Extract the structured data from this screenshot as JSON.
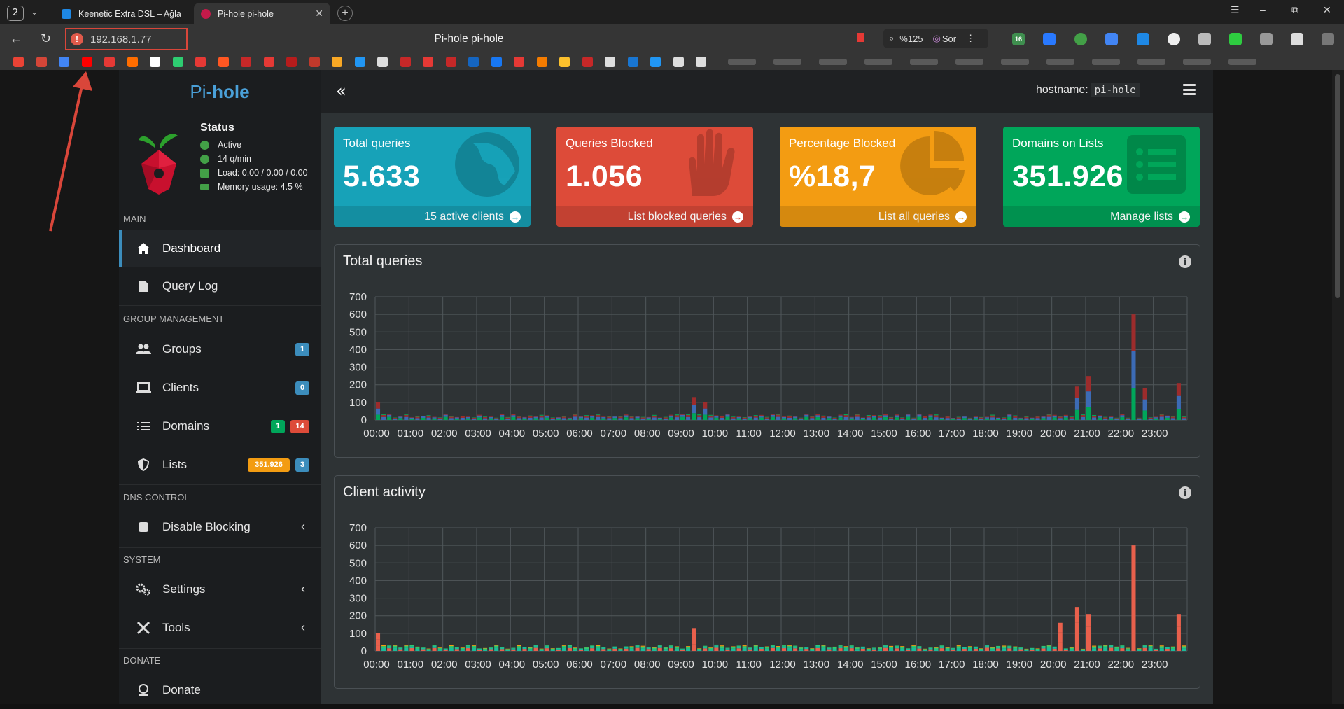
{
  "browser": {
    "tab_count": "2",
    "tabs": [
      {
        "title": "Keenetic Extra DSL – Ağla",
        "active": false
      },
      {
        "title": "Pi-hole pi-hole",
        "active": true
      }
    ],
    "url": "192.168.1.77",
    "page_title": "Pi-hole pi-hole",
    "zoom": "%125",
    "ask_label": "Sor",
    "extension_badge": "16"
  },
  "sidebar": {
    "brand_prefix": "Pi-",
    "brand_suffix": "hole",
    "status": {
      "title": "Status",
      "active": "Active",
      "rate": "14 q/min",
      "load": "Load:  0.00 / 0.00 / 0.00",
      "memory": "Memory usage:  4.5 %"
    },
    "sections": {
      "main": "MAIN",
      "group_management": "GROUP MANAGEMENT",
      "dns_control": "DNS CONTROL",
      "system": "SYSTEM",
      "donate": "DONATE"
    },
    "items": {
      "dashboard": "Dashboard",
      "query_log": "Query Log",
      "groups": "Groups",
      "groups_badge": "1",
      "clients": "Clients",
      "clients_badge": "0",
      "domains": "Domains",
      "domains_badge_allow": "1",
      "domains_badge_deny": "14",
      "lists": "Lists",
      "lists_badge_count": "351.926",
      "lists_badge_lists": "3",
      "disable_blocking": "Disable Blocking",
      "settings": "Settings",
      "tools": "Tools",
      "donate": "Donate"
    }
  },
  "header": {
    "hostname_label": "hostname:",
    "hostname_value": "pi-hole"
  },
  "stats": [
    {
      "title": "Total queries",
      "value": "5.633",
      "footer": "15 active clients",
      "color": "#17a2b8",
      "icon": "globe-icon"
    },
    {
      "title": "Queries Blocked",
      "value": "1.056",
      "footer": "List blocked queries",
      "color": "#dd4b39",
      "icon": "hand-icon"
    },
    {
      "title": "Percentage Blocked",
      "value": "%18,7",
      "footer": "List all queries",
      "color": "#f39c12",
      "icon": "pie-chart-icon"
    },
    {
      "title": "Domains on Lists",
      "value": "351.926",
      "footer": "Manage lists",
      "color": "#00a65a",
      "icon": "list-icon"
    }
  ],
  "panels": {
    "total_queries": "Total queries",
    "client_activity": "Client activity"
  },
  "chart_data": [
    {
      "type": "bar",
      "title": "Total queries",
      "stacked": true,
      "ylim": [
        0,
        700
      ],
      "yticks": [
        0,
        100,
        200,
        300,
        400,
        500,
        600,
        700
      ],
      "xticks": [
        "00:00",
        "01:00",
        "02:00",
        "03:00",
        "04:00",
        "05:00",
        "06:00",
        "07:00",
        "08:00",
        "09:00",
        "10:00",
        "11:00",
        "12:00",
        "13:00",
        "14:00",
        "15:00",
        "16:00",
        "17:00",
        "18:00",
        "19:00",
        "20:00",
        "21:00",
        "22:00",
        "23:00"
      ],
      "grid": true,
      "series_colors": [
        "#00a65a",
        "#3c6bb5",
        "#9c2c2c"
      ],
      "notable_bars": [
        {
          "x": "00:00",
          "total": 100
        },
        {
          "x": "09:15",
          "total": 130
        },
        {
          "x": "09:40",
          "total": 100
        },
        {
          "x": "20:40",
          "total": 190
        },
        {
          "x": "21:00",
          "total": 250
        },
        {
          "x": "22:20",
          "total": 600
        },
        {
          "x": "22:40",
          "total": 180
        },
        {
          "x": "23:40",
          "total": 210
        }
      ],
      "baseline": 30
    },
    {
      "type": "bar",
      "title": "Client activity",
      "stacked": true,
      "ylim": [
        0,
        700
      ],
      "yticks": [
        0,
        100,
        200,
        300,
        400,
        500,
        600,
        700
      ],
      "xticks": [
        "00:00",
        "01:00",
        "02:00",
        "03:00",
        "04:00",
        "05:00",
        "06:00",
        "07:00",
        "08:00",
        "09:00",
        "10:00",
        "11:00",
        "12:00",
        "13:00",
        "14:00",
        "15:00",
        "16:00",
        "17:00",
        "18:00",
        "19:00",
        "20:00",
        "21:00",
        "22:00",
        "23:00"
      ],
      "grid": true,
      "series_colors": [
        "#e8604c",
        "#1abc9c",
        "#2ecc71",
        "#f39c12",
        "#3c6bb5"
      ],
      "notable_bars": [
        {
          "x": "00:00",
          "total": 100
        },
        {
          "x": "09:20",
          "total": 130
        },
        {
          "x": "20:10",
          "total": 160
        },
        {
          "x": "20:40",
          "total": 250
        },
        {
          "x": "21:00",
          "total": 210
        },
        {
          "x": "22:20",
          "total": 600
        },
        {
          "x": "23:40",
          "total": 210
        }
      ],
      "baseline": 30
    }
  ]
}
